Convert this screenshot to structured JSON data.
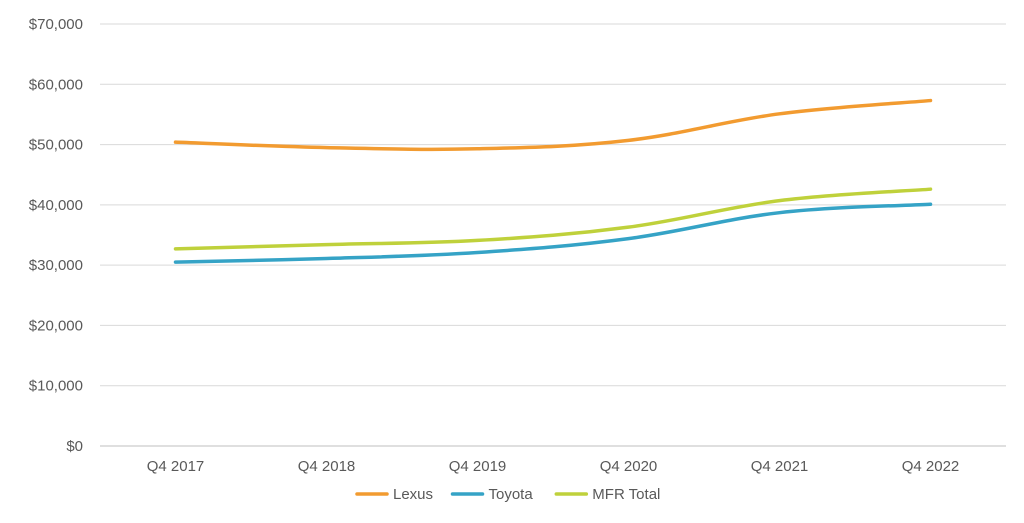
{
  "chart_data": {
    "type": "line",
    "categories": [
      "Q4 2017",
      "Q4 2018",
      "Q4 2019",
      "Q4 2020",
      "Q4 2021",
      "Q4 2022"
    ],
    "series": [
      {
        "name": "Lexus",
        "color": "#F29B30",
        "values": [
          50400,
          49500,
          49300,
          50700,
          55100,
          57300
        ]
      },
      {
        "name": "Toyota",
        "color": "#35A3C6",
        "values": [
          30500,
          31100,
          32100,
          34400,
          38700,
          40100
        ]
      },
      {
        "name": "MFR Total",
        "color": "#BFD13B",
        "values": [
          32700,
          33400,
          34100,
          36300,
          40700,
          42600
        ]
      }
    ],
    "y_ticks": [
      "$0",
      "$10,000",
      "$20,000",
      "$30,000",
      "$40,000",
      "$50,000",
      "$60,000",
      "$70,000"
    ],
    "ylim": [
      0,
      70000
    ],
    "grid": true,
    "legend_position": "bottom"
  }
}
